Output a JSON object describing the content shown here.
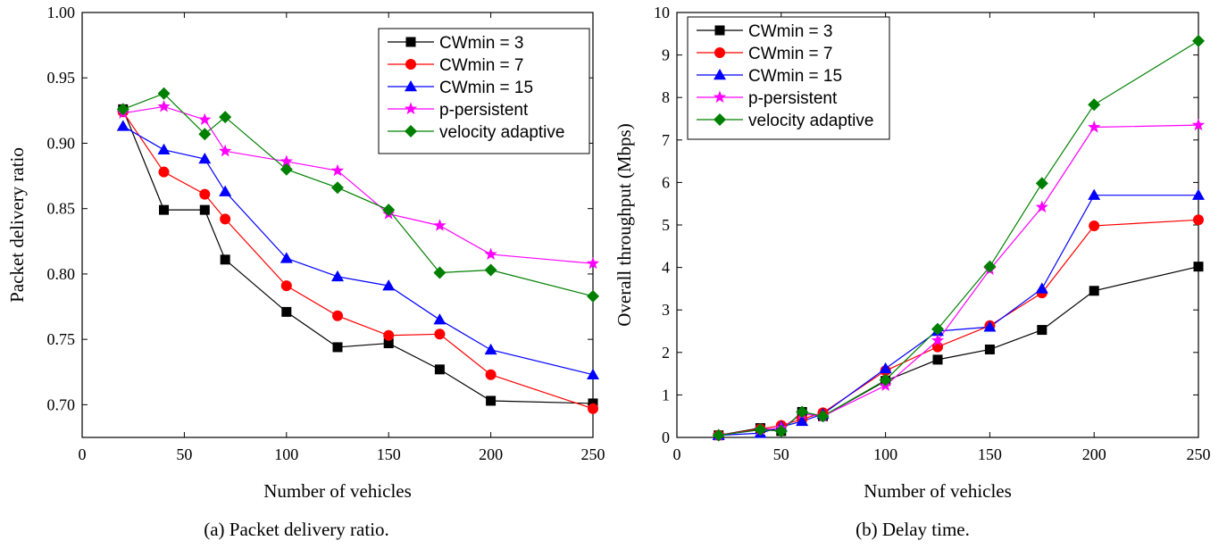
{
  "chart_data": [
    {
      "type": "line",
      "caption": "(a) Packet delivery ratio.",
      "title": "",
      "xlabel": "Number of vehicles",
      "ylabel": "Packet delivery ratio",
      "xlim": [
        0,
        250
      ],
      "ylim": [
        0.675,
        1.0
      ],
      "xticks": [
        0,
        50,
        100,
        150,
        200,
        250
      ],
      "yticks": [
        0.7,
        0.75,
        0.8,
        0.85,
        0.9,
        0.95,
        1.0
      ],
      "ytick_labels": [
        "0.70",
        "0.75",
        "0.80",
        "0.85",
        "0.90",
        "0.95",
        "1.00"
      ],
      "legend_position": "top-right",
      "grid": false,
      "series": [
        {
          "name": "CWmin = 3",
          "color": "#000000",
          "marker": "square",
          "x": [
            20,
            40,
            60,
            70,
            100,
            125,
            150,
            175,
            200,
            250
          ],
          "y": [
            0.926,
            0.849,
            0.849,
            0.811,
            0.771,
            0.744,
            0.747,
            0.727,
            0.703,
            0.701
          ]
        },
        {
          "name": "CWmin = 7",
          "color": "#ff0000",
          "marker": "circle",
          "x": [
            20,
            40,
            60,
            70,
            100,
            125,
            150,
            175,
            200,
            250
          ],
          "y": [
            0.924,
            0.878,
            0.861,
            0.842,
            0.791,
            0.768,
            0.753,
            0.754,
            0.723,
            0.697
          ]
        },
        {
          "name": "CWmin = 15",
          "color": "#0000ff",
          "marker": "triangle",
          "x": [
            20,
            40,
            60,
            70,
            100,
            125,
            150,
            175,
            200,
            250
          ],
          "y": [
            0.913,
            0.895,
            0.888,
            0.863,
            0.812,
            0.798,
            0.791,
            0.765,
            0.742,
            0.723
          ]
        },
        {
          "name": "p-persistent",
          "color": "#ff00ff",
          "marker": "star",
          "x": [
            20,
            40,
            60,
            70,
            100,
            125,
            150,
            175,
            200,
            250
          ],
          "y": [
            0.923,
            0.928,
            0.918,
            0.894,
            0.886,
            0.879,
            0.846,
            0.837,
            0.815,
            0.808
          ]
        },
        {
          "name": "velocity adaptive",
          "color": "#008000",
          "marker": "diamond",
          "x": [
            20,
            40,
            60,
            70,
            100,
            125,
            150,
            175,
            200,
            250
          ],
          "y": [
            0.926,
            0.938,
            0.907,
            0.92,
            0.88,
            0.866,
            0.849,
            0.801,
            0.803,
            0.783
          ]
        }
      ]
    },
    {
      "type": "line",
      "caption": "(b) Delay time.",
      "title": "",
      "xlabel": "Number of vehicles",
      "ylabel": "Overall throughput (Mbps)",
      "xlim": [
        0,
        250
      ],
      "ylim": [
        0,
        10
      ],
      "xticks": [
        0,
        50,
        100,
        150,
        200,
        250
      ],
      "yticks": [
        0,
        1,
        2,
        3,
        4,
        5,
        6,
        7,
        8,
        9,
        10
      ],
      "ytick_labels": [
        "0",
        "1",
        "2",
        "3",
        "4",
        "5",
        "6",
        "7",
        "8",
        "9",
        "10"
      ],
      "legend_position": "top-left",
      "grid": false,
      "series": [
        {
          "name": "CWmin = 3",
          "color": "#000000",
          "marker": "square",
          "x": [
            20,
            40,
            50,
            60,
            70,
            100,
            125,
            150,
            175,
            200,
            250
          ],
          "y": [
            0.05,
            0.22,
            0.15,
            0.6,
            0.5,
            1.33,
            1.83,
            2.07,
            2.53,
            3.45,
            4.02
          ]
        },
        {
          "name": "CWmin = 7",
          "color": "#ff0000",
          "marker": "circle",
          "x": [
            20,
            40,
            50,
            60,
            70,
            100,
            125,
            150,
            175,
            200,
            250
          ],
          "y": [
            0.05,
            0.2,
            0.28,
            0.43,
            0.58,
            1.57,
            2.13,
            2.63,
            3.4,
            4.98,
            5.12
          ]
        },
        {
          "name": "CWmin = 15",
          "color": "#0000ff",
          "marker": "triangle",
          "x": [
            20,
            40,
            50,
            60,
            70,
            100,
            125,
            150,
            175,
            200,
            250
          ],
          "y": [
            0.05,
            0.1,
            0.25,
            0.38,
            0.55,
            1.62,
            2.5,
            2.6,
            3.5,
            5.7,
            5.7
          ]
        },
        {
          "name": "p-persistent",
          "color": "#ff00ff",
          "marker": "star",
          "x": [
            20,
            40,
            50,
            60,
            70,
            100,
            125,
            150,
            175,
            200,
            250
          ],
          "y": [
            0.05,
            0.18,
            0.22,
            0.55,
            0.5,
            1.22,
            2.28,
            3.95,
            5.42,
            7.3,
            7.35
          ]
        },
        {
          "name": "velocity adaptive",
          "color": "#008000",
          "marker": "diamond",
          "x": [
            20,
            40,
            50,
            60,
            70,
            100,
            125,
            150,
            175,
            200,
            250
          ],
          "y": [
            0.05,
            0.18,
            0.15,
            0.6,
            0.5,
            1.35,
            2.55,
            4.02,
            5.98,
            7.83,
            9.33
          ]
        }
      ]
    }
  ]
}
